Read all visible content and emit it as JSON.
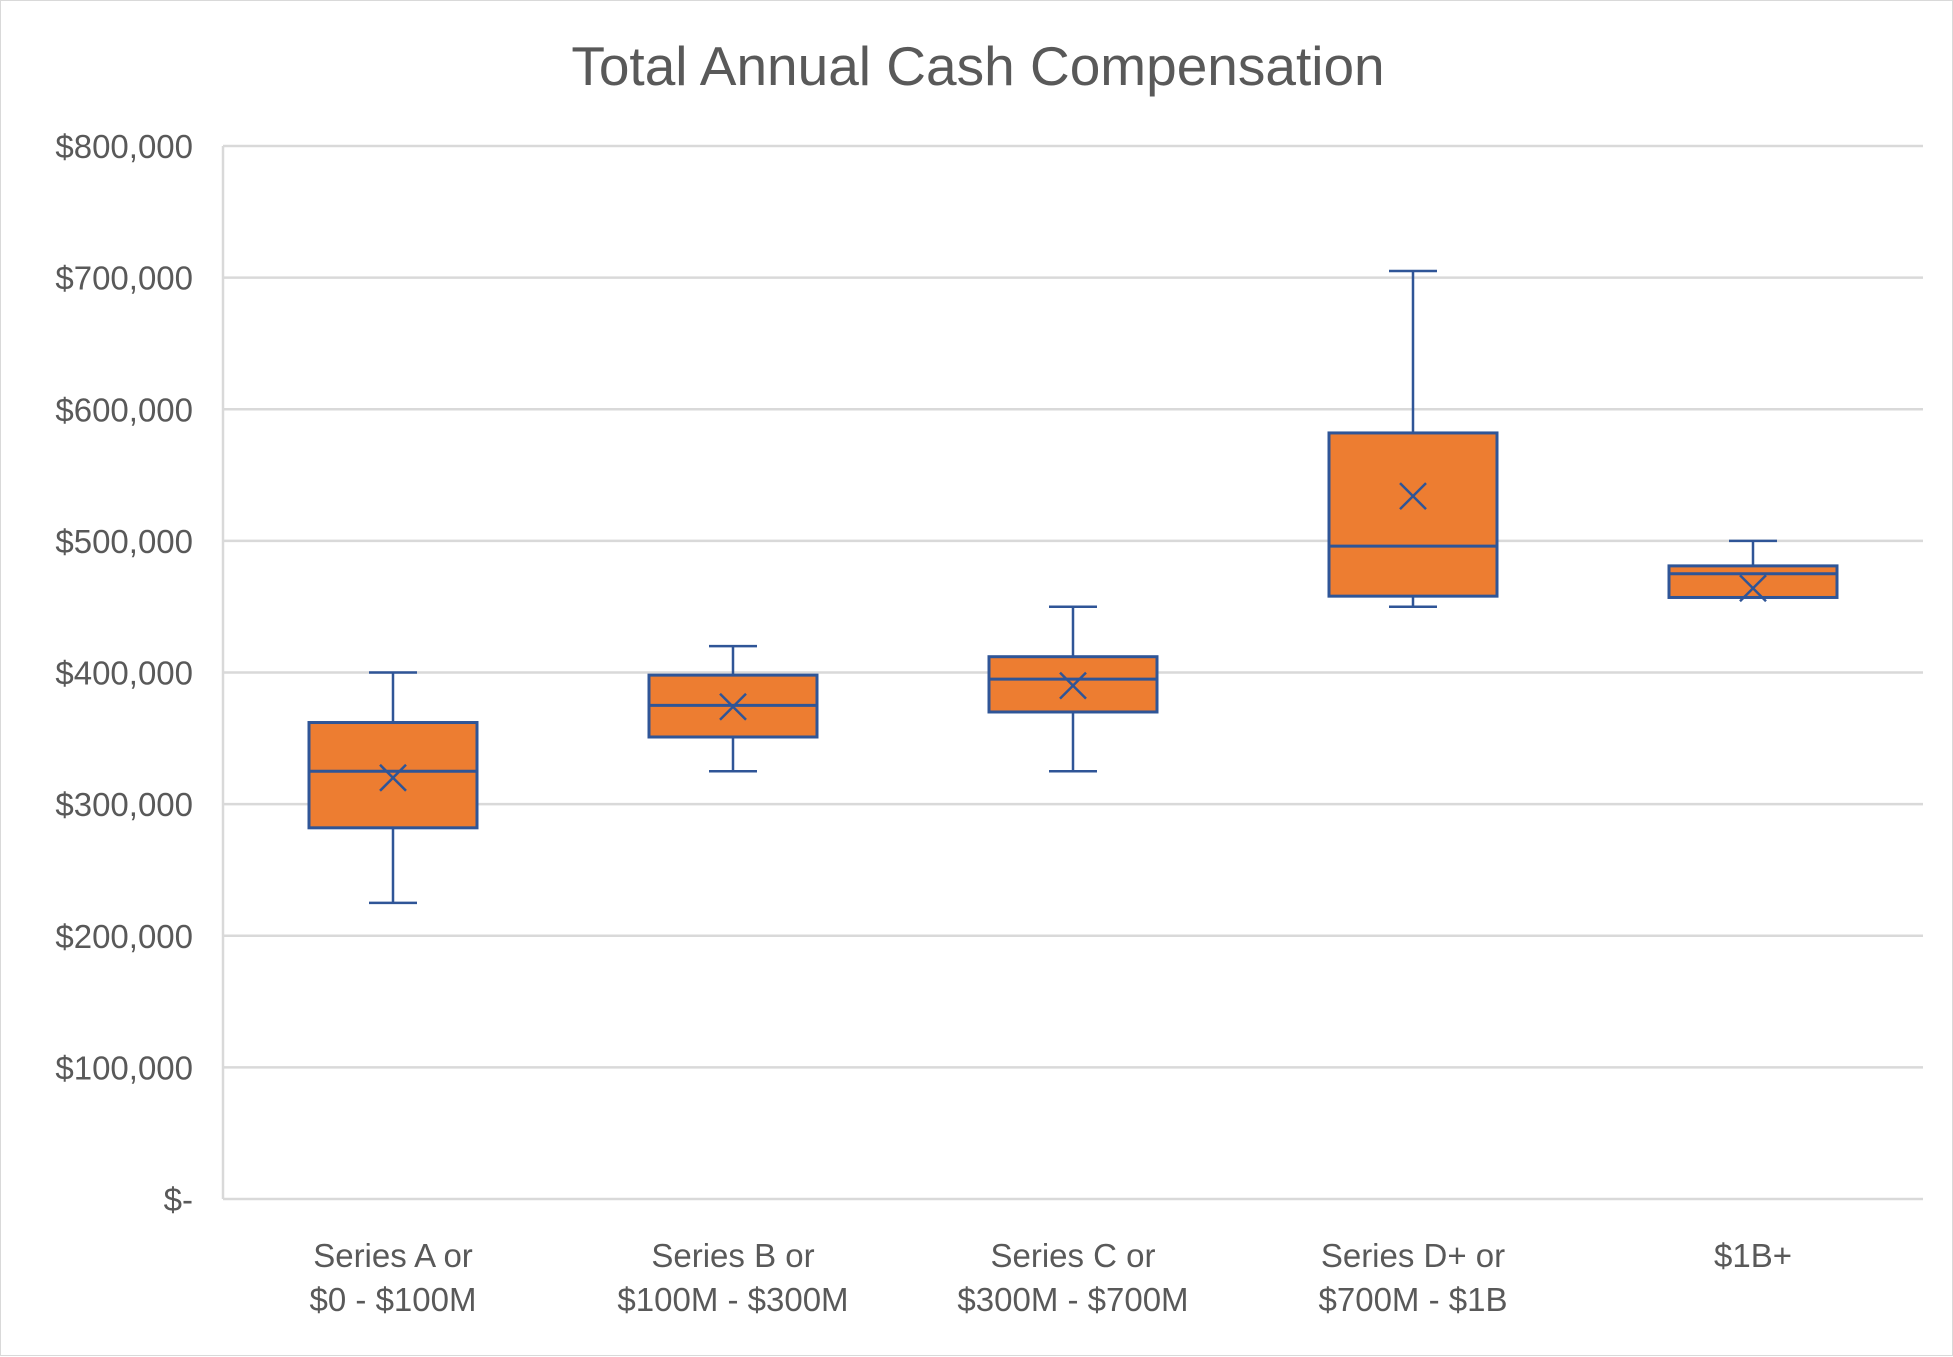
{
  "chart_data": {
    "type": "box",
    "title": "Total Annual Cash Compensation",
    "xlabel": "",
    "ylabel": "",
    "ylim": [
      0,
      800000
    ],
    "y_ticks": [
      0,
      100000,
      200000,
      300000,
      400000,
      500000,
      600000,
      700000,
      800000
    ],
    "y_tick_labels": [
      "$-",
      "$100,000",
      "$200,000",
      "$300,000",
      "$400,000",
      "$500,000",
      "$600,000",
      "$700,000",
      "$800,000"
    ],
    "grid": true,
    "legend": "none",
    "colors": {
      "box_fill": "#ED7D31",
      "box_stroke": "#2F5597",
      "gridline": "#D9D9D9",
      "text": "#595959"
    },
    "categories": [
      [
        "Series A or",
        "$0 - $100M"
      ],
      [
        "Series B or",
        "$100M - $300M"
      ],
      [
        "Series C or",
        "$300M - $700M"
      ],
      [
        "Series D+ or",
        "$700M - $1B"
      ],
      [
        "$1B+"
      ]
    ],
    "boxes": [
      {
        "min": 225000,
        "q1": 282000,
        "median": 325000,
        "q3": 362000,
        "max": 400000,
        "mean": 320000
      },
      {
        "min": 325000,
        "q1": 351000,
        "median": 375000,
        "q3": 398000,
        "max": 420000,
        "mean": 374000
      },
      {
        "min": 325000,
        "q1": 370000,
        "median": 395000,
        "q3": 412000,
        "max": 450000,
        "mean": 390000
      },
      {
        "min": 450000,
        "q1": 458000,
        "median": 496000,
        "q3": 582000,
        "max": 705000,
        "mean": 534000
      },
      {
        "min": 457000,
        "q1": 457000,
        "median": 475000,
        "q3": 481000,
        "max": 500000,
        "mean": 464000
      }
    ]
  }
}
